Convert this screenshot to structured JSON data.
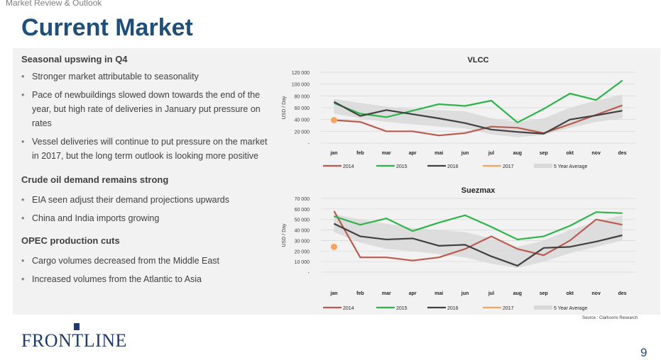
{
  "header": {
    "section": "Market Review & Outlook",
    "title": "Current Market"
  },
  "text": {
    "h1": "Seasonal upswing in Q4",
    "b1": [
      "Stronger market attributable to seasonality",
      "Pace of newbuildings slowed down towards the end of the year, but high rate of deliveries in January put pressure on rates",
      "Vessel deliveries will continue to put pressure on the market in 2017, but the long term outlook is looking more positive"
    ],
    "h2": "Crude oil demand remains strong",
    "b2": [
      "EIA seen adjust their demand projections upwards",
      "China and India imports growing"
    ],
    "h3": "OPEC production cuts",
    "b3": [
      "Cargo volumes decreased from the Middle East",
      "Increased volumes from the Atlantic to Asia"
    ]
  },
  "footer": {
    "logo": "FRONTLINE",
    "page": "9",
    "source": "Source : Clarksons Research"
  },
  "chart_data": [
    {
      "type": "line",
      "title": "VLCC",
      "ylabel": "USD / Day",
      "xlabel": "",
      "categories": [
        "jan",
        "feb",
        "mar",
        "apr",
        "mai",
        "jun",
        "jul",
        "aug",
        "sep",
        "okt",
        "nov",
        "des"
      ],
      "ylim": [
        0,
        120000
      ],
      "yticks": [
        0,
        20000,
        40000,
        60000,
        80000,
        100000,
        120000
      ],
      "ytick_labels": [
        "-",
        "20 000",
        "40 000",
        "60 000",
        "80 000",
        "100 000",
        "120 000"
      ],
      "grid": true,
      "legend_position": "bottom",
      "band": {
        "name": "5 Year Average",
        "color": "#d9d9d9",
        "lower": [
          50000,
          42000,
          36000,
          32000,
          28000,
          25000,
          15000,
          10000,
          14000,
          26000,
          36000,
          42000
        ],
        "upper": [
          75000,
          68000,
          62000,
          58000,
          56000,
          54000,
          42000,
          36000,
          42000,
          60000,
          72000,
          82000
        ]
      },
      "series": [
        {
          "name": "2014",
          "color": "#b85c50",
          "values": [
            39000,
            36000,
            20000,
            20000,
            13000,
            17000,
            28000,
            26000,
            17000,
            32000,
            48000,
            64000
          ]
        },
        {
          "name": "2015",
          "color": "#2db34a",
          "values": [
            68000,
            50000,
            44000,
            55000,
            66000,
            63000,
            72000,
            35000,
            58000,
            84000,
            73000,
            106000
          ]
        },
        {
          "name": "2016",
          "color": "#404040",
          "values": [
            70000,
            46000,
            56000,
            49000,
            42000,
            34000,
            23000,
            19000,
            16000,
            40000,
            47000,
            55000
          ]
        },
        {
          "name": "2017",
          "color": "#f4a460",
          "values": [
            39000,
            null,
            null,
            null,
            null,
            null,
            null,
            null,
            null,
            null,
            null,
            null
          ]
        }
      ]
    },
    {
      "type": "line",
      "title": "Suezmax",
      "ylabel": "USD / Day",
      "xlabel": "",
      "categories": [
        "jan",
        "feb",
        "mar",
        "apr",
        "mai",
        "jun",
        "jul",
        "aug",
        "sep",
        "okt",
        "nov",
        "des"
      ],
      "ylim": [
        0,
        70000
      ],
      "yticks": [
        0,
        10000,
        20000,
        30000,
        40000,
        50000,
        60000,
        70000
      ],
      "ytick_labels": [
        "-",
        "10 000",
        "20 000",
        "30 000",
        "40 000",
        "50 000",
        "60 000",
        "70 000"
      ],
      "grid": true,
      "legend_position": "bottom",
      "band": {
        "name": "5 Year Average",
        "color": "#d9d9d9",
        "lower": [
          38000,
          28000,
          22000,
          20000,
          17000,
          14000,
          8000,
          4000,
          10000,
          18000,
          24000,
          30000
        ],
        "upper": [
          55000,
          50000,
          46000,
          42000,
          40000,
          38000,
          32000,
          24000,
          30000,
          40000,
          48000,
          54000
        ]
      },
      "series": [
        {
          "name": "2014",
          "color": "#b85c50",
          "values": [
            58000,
            14000,
            14000,
            11000,
            14000,
            22000,
            34000,
            22000,
            16000,
            30000,
            50000,
            45000
          ]
        },
        {
          "name": "2015",
          "color": "#2db34a",
          "values": [
            53000,
            45000,
            51000,
            39000,
            47000,
            54000,
            43000,
            31000,
            34000,
            44000,
            57000,
            56000
          ]
        },
        {
          "name": "2016",
          "color": "#404040",
          "values": [
            46000,
            34000,
            31000,
            32000,
            25000,
            26000,
            15000,
            6000,
            23000,
            24000,
            29000,
            35000
          ]
        },
        {
          "name": "2017",
          "color": "#f4a460",
          "values": [
            24000,
            null,
            null,
            null,
            null,
            null,
            null,
            null,
            null,
            null,
            null,
            null
          ]
        }
      ]
    }
  ]
}
